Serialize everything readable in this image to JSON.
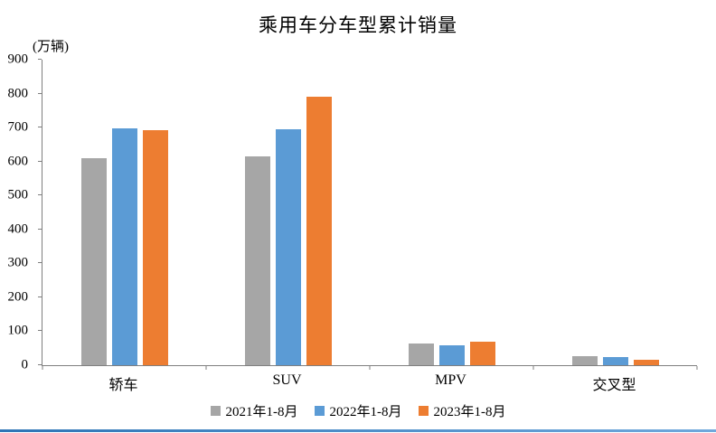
{
  "title": "乘用车分车型累计销量",
  "y_unit": "(万辆)",
  "chart_data": {
    "type": "bar",
    "categories": [
      "轿车",
      "SUV",
      "MPV",
      "交叉型"
    ],
    "series": [
      {
        "name": "2021年1-8月",
        "color": "#a6a6a6",
        "values": [
          610,
          615,
          65,
          28
        ]
      },
      {
        "name": "2022年1-8月",
        "color": "#5b9bd5",
        "values": [
          697,
          695,
          58,
          24
        ]
      },
      {
        "name": "2023年1-8月",
        "color": "#ed7d31",
        "values": [
          692,
          792,
          68,
          17
        ]
      }
    ],
    "ylim": [
      0,
      900
    ],
    "ytick_step": 100,
    "grid": false,
    "legend_position": "bottom"
  },
  "accent_line": {
    "color_left": "#2e75b6",
    "color_right": "#6fa8dc"
  }
}
